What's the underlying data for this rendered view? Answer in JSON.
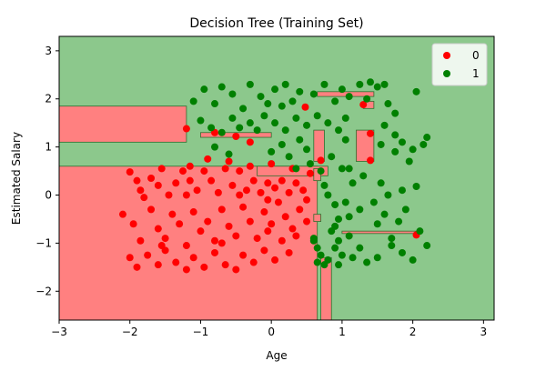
{
  "chart_data": {
    "type": "scatter",
    "title": "Decision Tree (Training Set)",
    "xlabel": "Age",
    "ylabel": "Estimated Salary",
    "xlim": [
      -3.0,
      3.15
    ],
    "ylim": [
      -2.6,
      3.3
    ],
    "xticks": [
      -3,
      -2,
      -1,
      0,
      1,
      2,
      3
    ],
    "yticks": [
      -2,
      -1,
      0,
      1,
      2,
      3
    ],
    "grid": false,
    "legend_position": "top-right",
    "background_colors": {
      "class_0": "#FF8080",
      "class_1": "#8CC88C",
      "boundary": "#2F6F2F"
    },
    "regions_class_0": [
      [
        -3.0,
        -2.6,
        0.65,
        0.6
      ],
      [
        -3.0,
        1.1,
        -1.2,
        1.85
      ],
      [
        -1.0,
        1.2,
        0.0,
        1.3
      ],
      [
        -0.2,
        0.4,
        0.8,
        0.6
      ],
      [
        0.6,
        0.3,
        0.7,
        0.55
      ],
      [
        0.7,
        -2.6,
        0.85,
        -1.3
      ],
      [
        1.0,
        -0.8,
        2.1,
        -0.75
      ],
      [
        0.6,
        0.7,
        0.75,
        1.35
      ],
      [
        1.2,
        0.7,
        1.45,
        1.35
      ],
      [
        0.65,
        2.05,
        1.45,
        2.15
      ],
      [
        1.3,
        1.8,
        1.45,
        1.95
      ],
      [
        0.6,
        -0.55,
        0.7,
        -0.4
      ]
    ],
    "series": [
      {
        "name": "0",
        "color": "#FF0000",
        "points": [
          [
            -2.0,
            0.48
          ],
          [
            -1.9,
            0.3
          ],
          [
            -1.85,
            0.1
          ],
          [
            -1.8,
            -0.05
          ],
          [
            -1.7,
            0.35
          ],
          [
            -1.6,
            0.2
          ],
          [
            -1.55,
            0.55
          ],
          [
            -1.45,
            0.0
          ],
          [
            -1.35,
            0.25
          ],
          [
            -1.25,
            0.5
          ],
          [
            -1.2,
            0.0
          ],
          [
            -1.15,
            0.3
          ],
          [
            -1.05,
            0.1
          ],
          [
            -0.95,
            0.5
          ],
          [
            -0.85,
            0.3
          ],
          [
            -0.75,
            0.05
          ],
          [
            -0.65,
            0.55
          ],
          [
            -0.55,
            0.2
          ],
          [
            -0.45,
            0.5
          ],
          [
            -0.35,
            0.1
          ],
          [
            -0.25,
            0.3
          ],
          [
            -0.15,
            0.05
          ],
          [
            -0.05,
            0.25
          ],
          [
            0.05,
            0.15
          ],
          [
            0.15,
            0.3
          ],
          [
            0.25,
            0.05
          ],
          [
            0.35,
            0.25
          ],
          [
            0.45,
            0.1
          ],
          [
            0.5,
            -0.1
          ],
          [
            -2.1,
            -0.4
          ],
          [
            -1.95,
            -0.6
          ],
          [
            -1.85,
            -0.95
          ],
          [
            -1.7,
            -0.3
          ],
          [
            -1.6,
            -0.7
          ],
          [
            -1.5,
            -0.9
          ],
          [
            -1.4,
            -0.4
          ],
          [
            -1.3,
            -0.6
          ],
          [
            -1.2,
            -1.05
          ],
          [
            -1.1,
            -0.35
          ],
          [
            -1.0,
            -0.75
          ],
          [
            -0.9,
            -0.55
          ],
          [
            -0.8,
            -0.95
          ],
          [
            -0.7,
            -0.3
          ],
          [
            -0.6,
            -0.65
          ],
          [
            -0.5,
            -0.85
          ],
          [
            -0.4,
            -0.25
          ],
          [
            -0.3,
            -0.55
          ],
          [
            -0.2,
            -0.9
          ],
          [
            -0.1,
            -0.35
          ],
          [
            0.0,
            -0.6
          ],
          [
            0.1,
            -0.15
          ],
          [
            0.2,
            -0.45
          ],
          [
            0.3,
            -0.7
          ],
          [
            0.4,
            -0.3
          ],
          [
            0.5,
            -0.55
          ],
          [
            -2.0,
            -1.3
          ],
          [
            -1.9,
            -1.5
          ],
          [
            -1.75,
            -1.25
          ],
          [
            -1.6,
            -1.45
          ],
          [
            -1.5,
            -1.15
          ],
          [
            -1.35,
            -1.4
          ],
          [
            -1.2,
            -1.55
          ],
          [
            -1.1,
            -1.3
          ],
          [
            -0.95,
            -1.5
          ],
          [
            -0.8,
            -1.2
          ],
          [
            -0.65,
            -1.45
          ],
          [
            -0.5,
            -1.55
          ],
          [
            -0.4,
            -1.25
          ],
          [
            -0.25,
            -1.4
          ],
          [
            -0.1,
            -1.15
          ],
          [
            0.05,
            -1.35
          ],
          [
            0.25,
            -1.2
          ],
          [
            -1.2,
            1.38
          ],
          [
            -0.8,
            1.3
          ],
          [
            -0.5,
            1.22
          ],
          [
            -0.3,
            1.1
          ],
          [
            0.48,
            1.83
          ],
          [
            1.3,
            1.88
          ],
          [
            1.4,
            1.28
          ],
          [
            0.7,
            0.72
          ],
          [
            1.4,
            0.72
          ],
          [
            2.05,
            -0.83
          ],
          [
            -0.9,
            0.75
          ],
          [
            -0.6,
            0.7
          ],
          [
            -0.3,
            0.6
          ],
          [
            0.0,
            0.65
          ],
          [
            0.3,
            0.55
          ],
          [
            0.55,
            0.45
          ],
          [
            -1.15,
            0.6
          ],
          [
            -0.45,
            0.0
          ],
          [
            -0.05,
            -0.1
          ],
          [
            0.35,
            -0.85
          ],
          [
            -1.55,
            -1.05
          ],
          [
            -0.7,
            -1.0
          ],
          [
            0.15,
            -0.95
          ],
          [
            -0.05,
            -0.75
          ]
        ]
      },
      {
        "name": "1",
        "color": "#008000",
        "points": [
          [
            -1.1,
            1.95
          ],
          [
            -0.95,
            2.2
          ],
          [
            -0.8,
            1.9
          ],
          [
            -0.7,
            2.25
          ],
          [
            -0.55,
            2.1
          ],
          [
            -0.4,
            1.8
          ],
          [
            -0.3,
            2.3
          ],
          [
            -0.15,
            2.05
          ],
          [
            -0.05,
            1.9
          ],
          [
            0.05,
            2.2
          ],
          [
            0.2,
            2.3
          ],
          [
            0.3,
            1.95
          ],
          [
            0.4,
            2.15
          ],
          [
            0.6,
            2.1
          ],
          [
            0.75,
            2.3
          ],
          [
            0.9,
            1.95
          ],
          [
            1.0,
            2.2
          ],
          [
            1.1,
            2.05
          ],
          [
            1.25,
            2.3
          ],
          [
            1.35,
            2.0
          ],
          [
            1.5,
            2.25
          ],
          [
            1.65,
            1.9
          ],
          [
            1.75,
            1.7
          ],
          [
            2.05,
            2.15
          ],
          [
            -1.0,
            1.55
          ],
          [
            -0.85,
            1.4
          ],
          [
            -0.7,
            1.3
          ],
          [
            -0.55,
            1.6
          ],
          [
            -0.45,
            1.4
          ],
          [
            -0.3,
            1.5
          ],
          [
            -0.2,
            1.35
          ],
          [
            -0.1,
            1.65
          ],
          [
            0.05,
            1.5
          ],
          [
            0.2,
            1.35
          ],
          [
            0.35,
            1.6
          ],
          [
            0.5,
            1.45
          ],
          [
            0.65,
            1.65
          ],
          [
            0.8,
            1.5
          ],
          [
            0.95,
            1.35
          ],
          [
            1.05,
            1.6
          ],
          [
            1.6,
            1.45
          ],
          [
            1.75,
            1.25
          ],
          [
            1.85,
            1.1
          ],
          [
            2.0,
            0.95
          ],
          [
            2.15,
            1.05
          ],
          [
            2.2,
            1.2
          ],
          [
            1.55,
            1.05
          ],
          [
            1.75,
            0.9
          ],
          [
            1.95,
            0.7
          ],
          [
            -0.8,
            1.0
          ],
          [
            -0.6,
            0.85
          ],
          [
            0.0,
            0.9
          ],
          [
            0.15,
            1.05
          ],
          [
            0.4,
            1.15
          ],
          [
            0.5,
            0.95
          ],
          [
            0.25,
            0.8
          ],
          [
            0.35,
            0.55
          ],
          [
            0.55,
            0.65
          ],
          [
            0.7,
            0.5
          ],
          [
            0.85,
            0.8
          ],
          [
            1.0,
            0.55
          ],
          [
            1.1,
            0.55
          ],
          [
            1.15,
            0.25
          ],
          [
            1.3,
            0.4
          ],
          [
            0.75,
            0.2
          ],
          [
            0.8,
            0.0
          ],
          [
            0.9,
            -0.2
          ],
          [
            1.05,
            -0.15
          ],
          [
            0.95,
            -0.5
          ],
          [
            1.1,
            -0.45
          ],
          [
            1.25,
            -0.3
          ],
          [
            0.85,
            -0.75
          ],
          [
            0.95,
            -0.95
          ],
          [
            1.1,
            -0.85
          ],
          [
            0.6,
            -0.9
          ],
          [
            0.65,
            -1.1
          ],
          [
            0.7,
            -1.25
          ],
          [
            0.8,
            -1.35
          ],
          [
            0.9,
            -1.1
          ],
          [
            1.0,
            -1.25
          ],
          [
            1.15,
            -1.3
          ],
          [
            1.25,
            -1.1
          ],
          [
            1.35,
            -1.4
          ],
          [
            1.5,
            -1.3
          ],
          [
            1.7,
            -1.05
          ],
          [
            1.85,
            -1.2
          ],
          [
            2.0,
            -1.35
          ],
          [
            2.2,
            -1.05
          ],
          [
            2.1,
            -0.75
          ],
          [
            1.7,
            -0.9
          ],
          [
            1.5,
            -0.6
          ],
          [
            1.6,
            -0.4
          ],
          [
            1.8,
            -0.55
          ],
          [
            1.9,
            -0.3
          ],
          [
            1.45,
            -0.15
          ],
          [
            1.65,
            0.0
          ],
          [
            1.85,
            0.1
          ],
          [
            2.05,
            0.18
          ],
          [
            1.55,
            0.25
          ],
          [
            0.95,
            -1.45
          ],
          [
            0.75,
            -1.45
          ],
          [
            0.9,
            -0.65
          ],
          [
            0.6,
            -0.95
          ],
          [
            0.65,
            -1.4
          ],
          [
            1.05,
            1.15
          ],
          [
            1.6,
            2.3
          ],
          [
            1.4,
            2.35
          ],
          [
            0.15,
            1.85
          ]
        ]
      }
    ]
  }
}
